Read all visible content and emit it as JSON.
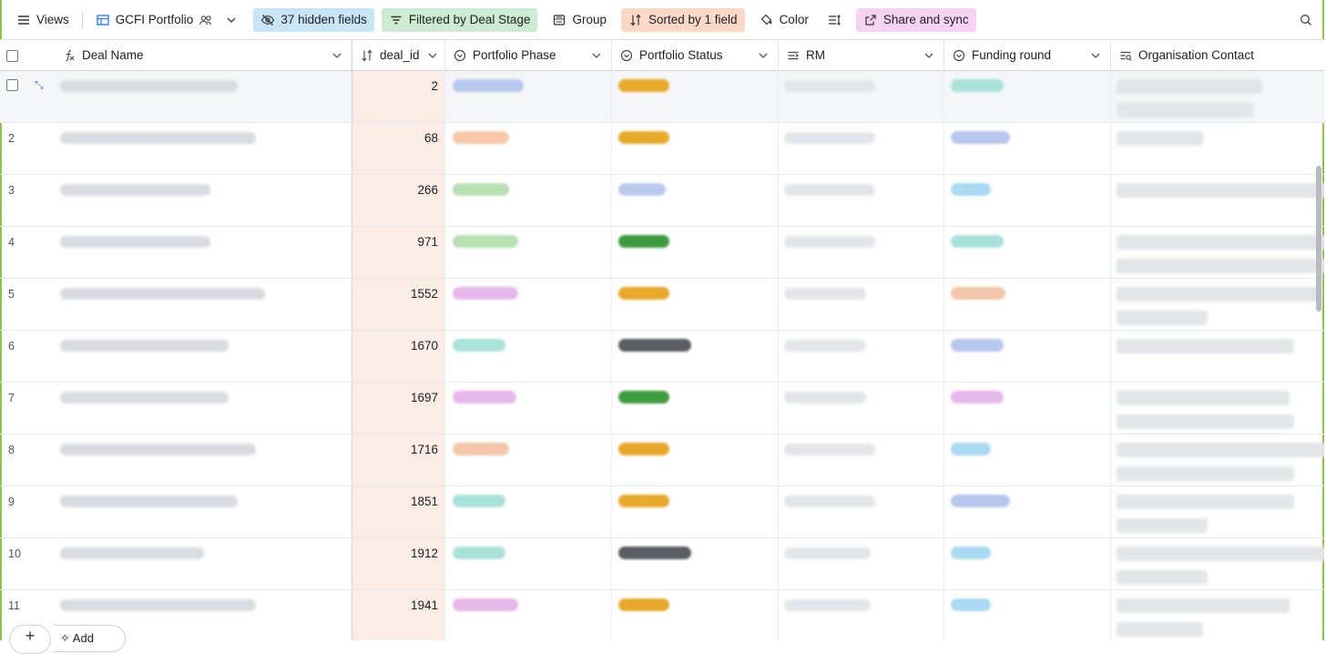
{
  "toolbar": {
    "views_label": "Views",
    "table_name": "GCFI Portfolio",
    "hidden_fields": "37 hidden fields",
    "filter": "Filtered by Deal Stage",
    "group": "Group",
    "sort": "Sorted by 1 field",
    "color": "Color",
    "share": "Share and sync"
  },
  "columns": {
    "deal_name": "Deal Name",
    "deal_id": "deal_id",
    "portfolio_phase": "Portfolio Phase",
    "portfolio_status": "Portfolio Status",
    "rm": "RM",
    "funding_round": "Funding round",
    "org_contact": "Organisation Contact"
  },
  "rows": [
    {
      "num": "",
      "deal_id": "2",
      "phase_color": "#b7c9ef",
      "status_color": "#e8a92a",
      "fund_color": "#a9e2d9"
    },
    {
      "num": "2",
      "deal_id": "68",
      "phase_color": "#f8c8a9",
      "status_color": "#e8a92a",
      "fund_color": "#b7c7ee"
    },
    {
      "num": "3",
      "deal_id": "266",
      "phase_color": "#b7e0b3",
      "status_color": "#b9c9ee",
      "fund_color": "#a9daf2"
    },
    {
      "num": "4",
      "deal_id": "971",
      "phase_color": "#b7e0b3",
      "status_color": "#3e9a3e",
      "fund_color": "#a9e2d9"
    },
    {
      "num": "5",
      "deal_id": "1552",
      "phase_color": "#e6b8ea",
      "status_color": "#e8a92a",
      "fund_color": "#f3c6aa"
    },
    {
      "num": "6",
      "deal_id": "1670",
      "phase_color": "#a9e2d9",
      "status_color": "#5b5d63",
      "fund_color": "#b7c7ee"
    },
    {
      "num": "7",
      "deal_id": "1697",
      "phase_color": "#e6b8ea",
      "status_color": "#3e9a3e",
      "fund_color": "#e6b8ea"
    },
    {
      "num": "8",
      "deal_id": "1716",
      "phase_color": "#f3c6aa",
      "status_color": "#e8a92a",
      "fund_color": "#a9daf2"
    },
    {
      "num": "9",
      "deal_id": "1851",
      "phase_color": "#a9e2d9",
      "status_color": "#e8a92a",
      "fund_color": "#b7c7ee"
    },
    {
      "num": "10",
      "deal_id": "1912",
      "phase_color": "#a9e2d9",
      "status_color": "#5b5d63",
      "fund_color": "#a9daf2"
    },
    {
      "num": "11",
      "deal_id": "1941",
      "phase_color": "#e6b8ea",
      "status_color": "#e8a92a",
      "fund_color": "#a9daf2"
    }
  ],
  "footer": {
    "add_label": "Add"
  }
}
